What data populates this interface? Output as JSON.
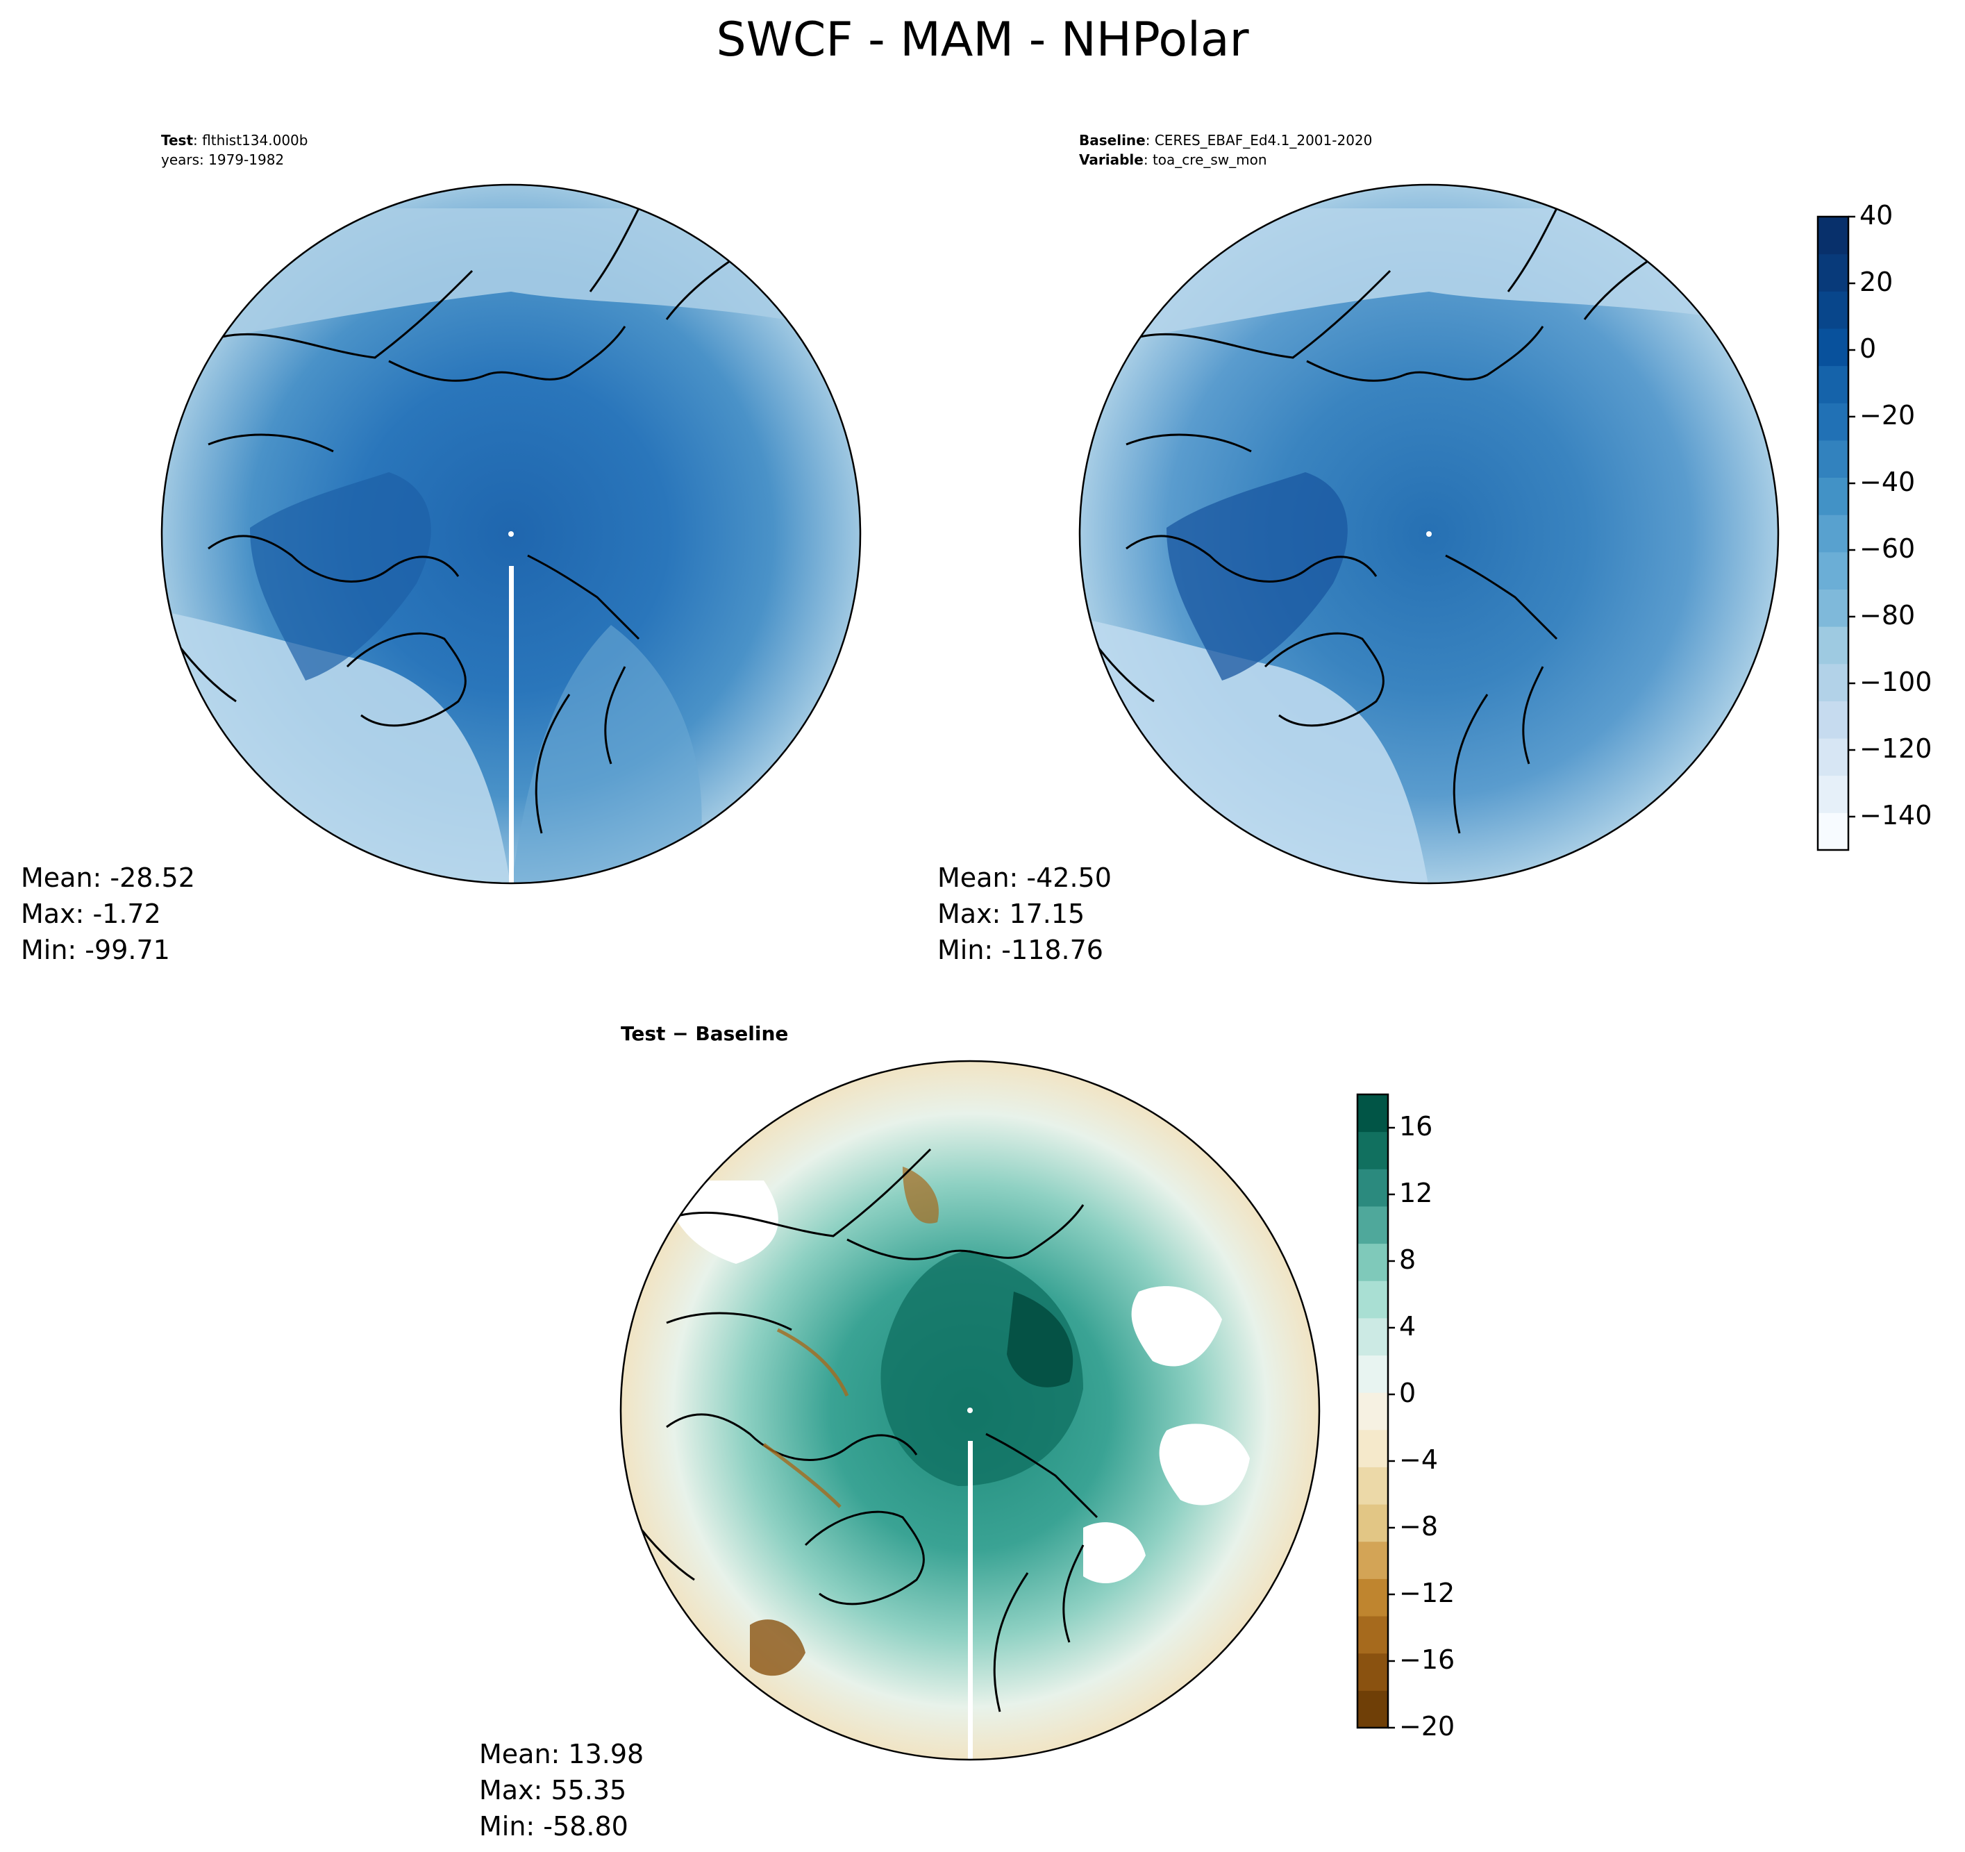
{
  "figure": {
    "title": "SWCF - MAM - NHPolar"
  },
  "panels": {
    "test": {
      "label_bold": "Test",
      "label_value": "flthist134.000b",
      "years_line": "years: 1979-1982",
      "stats": {
        "mean": "Mean: -28.52",
        "max": "Max: -1.72",
        "min": "Min: -99.71"
      }
    },
    "baseline": {
      "label_bold": "Baseline",
      "label_value": "CERES_EBAF_Ed4.1_2001-2020",
      "variable_bold": "Variable",
      "variable_value": "toa_cre_sw_mon",
      "stats": {
        "mean": "Mean: -42.50",
        "max": "Max: 17.15",
        "min": "Min: -118.76"
      }
    },
    "diff": {
      "title": "Test − Baseline",
      "stats": {
        "mean": "Mean: 13.98",
        "max": "Max: 55.35",
        "min": "Min: -58.80"
      }
    }
  },
  "chart_data": [
    {
      "type": "heatmap",
      "panel": "test",
      "projection": "north polar stereographic",
      "colormap": "Blues",
      "mean": -28.52,
      "max": -1.72,
      "min": -99.71
    },
    {
      "type": "heatmap",
      "panel": "baseline",
      "projection": "north polar stereographic",
      "colormap": "Blues",
      "mean": -42.5,
      "max": 17.15,
      "min": -118.76,
      "colorbar": {
        "range": [
          -150,
          40
        ],
        "ticks": [
          40,
          20,
          0,
          -20,
          -40,
          -60,
          -80,
          -100,
          -120,
          -140
        ],
        "tick_labels": [
          "40",
          "20",
          "0",
          "−20",
          "−40",
          "−60",
          "−80",
          "−100",
          "−120",
          "−140"
        ],
        "colors": [
          "#f7fbff",
          "#e6f0f9",
          "#d7e6f4",
          "#c6dbef",
          "#b2d2e8",
          "#9ecae1",
          "#7fb9da",
          "#6baed6",
          "#58a1cf",
          "#4292c6",
          "#3282be",
          "#2171b5",
          "#1563aa",
          "#08519c",
          "#08468b",
          "#083a7a",
          "#08306b"
        ]
      }
    },
    {
      "type": "heatmap",
      "panel": "diff",
      "projection": "north polar stereographic",
      "colormap": "BrBG",
      "mean": 13.98,
      "max": 55.35,
      "min": -58.8,
      "colorbar": {
        "range": [
          -20,
          18
        ],
        "ticks": [
          16,
          12,
          8,
          4,
          0,
          -4,
          -8,
          -12,
          -16,
          -20
        ],
        "tick_labels": [
          "16",
          "12",
          "8",
          "4",
          "0",
          "−4",
          "−8",
          "−12",
          "−16",
          "−20"
        ],
        "colors": [
          "#6f3f07",
          "#8a5210",
          "#a66a1d",
          "#bf852f",
          "#d3a456",
          "#e2c685",
          "#ecd9a8",
          "#f5e9cb",
          "#f6f1e2",
          "#e8f4f1",
          "#cceae4",
          "#a9dfd3",
          "#7fc9ba",
          "#4fa89b",
          "#2b8a7e",
          "#11705f",
          "#015546"
        ]
      }
    }
  ]
}
